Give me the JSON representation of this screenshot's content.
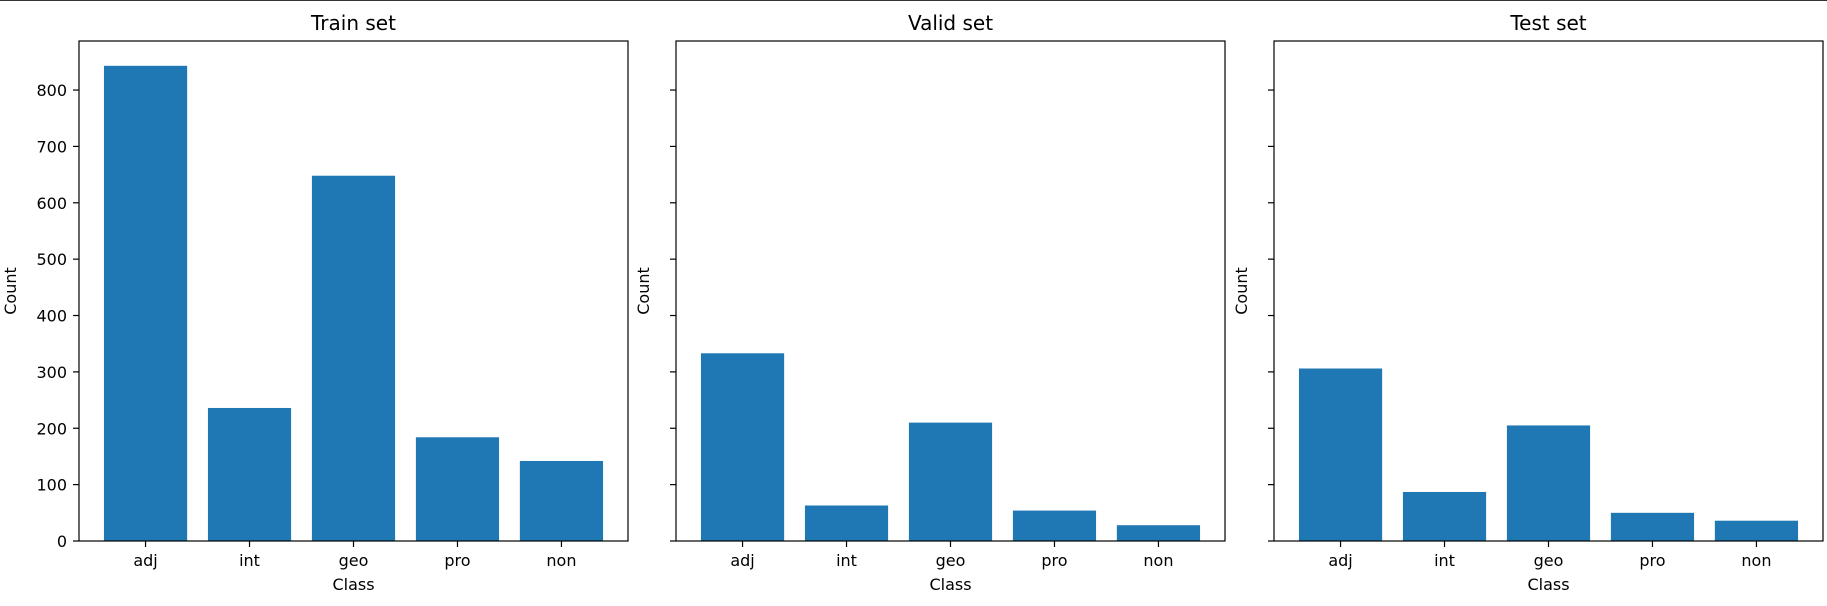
{
  "chart_data": [
    {
      "type": "bar",
      "title": "Train set",
      "xlabel": "Class",
      "ylabel": "Count",
      "categories": [
        "adj",
        "int",
        "geo",
        "pro",
        "non"
      ],
      "values": [
        843,
        236,
        648,
        184,
        142
      ],
      "ylim": [
        0,
        887
      ],
      "yticks": [
        0,
        100,
        200,
        300,
        400,
        500,
        600,
        700,
        800
      ],
      "show_ytick_labels": true,
      "grid": false,
      "bar_color": "#1f77b4"
    },
    {
      "type": "bar",
      "title": "Valid set",
      "xlabel": "Class",
      "ylabel": "Count",
      "categories": [
        "adj",
        "int",
        "geo",
        "pro",
        "non"
      ],
      "values": [
        333,
        63,
        210,
        54,
        28
      ],
      "ylim": [
        0,
        887
      ],
      "yticks": [
        0,
        100,
        200,
        300,
        400,
        500,
        600,
        700,
        800
      ],
      "show_ytick_labels": false,
      "grid": false,
      "bar_color": "#1f77b4"
    },
    {
      "type": "bar",
      "title": "Test set",
      "xlabel": "Class",
      "ylabel": "Count",
      "categories": [
        "adj",
        "int",
        "geo",
        "pro",
        "non"
      ],
      "values": [
        306,
        87,
        205,
        50,
        36
      ],
      "ylim": [
        0,
        887
      ],
      "yticks": [
        0,
        100,
        200,
        300,
        400,
        500,
        600,
        700,
        800
      ],
      "show_ytick_labels": false,
      "grid": false,
      "bar_color": "#1f77b4"
    }
  ]
}
